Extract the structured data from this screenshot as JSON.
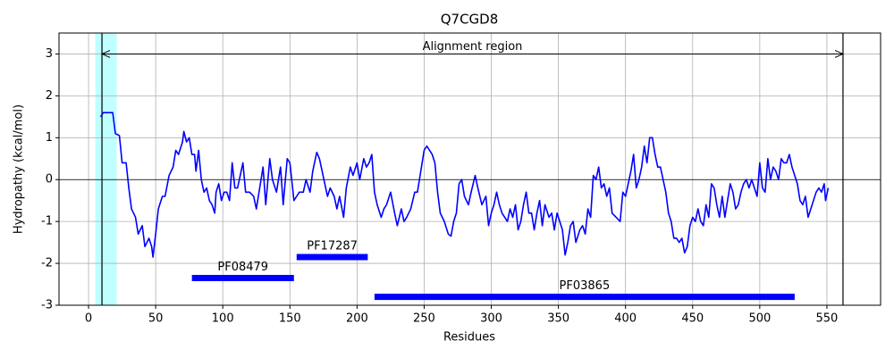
{
  "chart_data": {
    "type": "line",
    "title": "Q7CGD8",
    "xlabel": "Residues",
    "ylabel": "Hydropathy (kcal/mol)",
    "color": "#0000ff",
    "grid": true,
    "reference_line": 0,
    "xlim": [
      -22,
      590
    ],
    "ylim": [
      -3,
      3.5
    ],
    "xticks": [
      0,
      50,
      100,
      150,
      200,
      250,
      300,
      350,
      400,
      450,
      500,
      550
    ],
    "yticks": [
      -3,
      -2,
      -1,
      0,
      1,
      2,
      3
    ],
    "highlight": [
      5,
      21
    ],
    "alignment": {
      "label": "Alignment region",
      "start": 10,
      "end": 562,
      "y": 3
    },
    "domains": [
      {
        "label": "PF08479",
        "start": 77,
        "end": 153,
        "y": -2.35
      },
      {
        "label": "PF17287",
        "start": 155,
        "end": 208,
        "y": -1.85
      },
      {
        "label": "PF03865",
        "start": 213,
        "end": 526,
        "y": -2.8
      }
    ],
    "x": [
      9,
      11,
      15,
      18,
      20,
      23,
      25,
      28,
      30,
      32,
      35,
      37,
      40,
      42,
      45,
      47,
      48,
      50,
      52,
      55,
      57,
      60,
      63,
      65,
      67,
      70,
      71,
      73,
      75,
      77,
      79,
      80,
      82,
      84,
      86,
      88,
      90,
      92,
      94,
      95,
      97,
      99,
      101,
      103,
      105,
      107,
      109,
      111,
      113,
      115,
      117,
      120,
      123,
      125,
      127,
      130,
      132,
      135,
      137,
      140,
      143,
      145,
      148,
      150,
      153,
      155,
      157,
      160,
      162,
      165,
      167,
      170,
      172,
      174,
      176,
      178,
      180,
      183,
      185,
      187,
      190,
      192,
      195,
      197,
      200,
      202,
      205,
      207,
      209,
      211,
      213,
      215,
      218,
      220,
      222,
      225,
      228,
      230,
      233,
      235,
      237,
      240,
      243,
      245,
      248,
      250,
      252,
      254,
      256,
      258,
      260,
      262,
      265,
      268,
      270,
      272,
      274,
      276,
      278,
      280,
      283,
      285,
      288,
      290,
      293,
      296,
      298,
      300,
      302,
      304,
      306,
      308,
      310,
      312,
      314,
      316,
      318,
      320,
      322,
      324,
      326,
      328,
      330,
      332,
      334,
      336,
      338,
      340,
      343,
      345,
      347,
      349,
      351,
      353,
      355,
      357,
      359,
      361,
      363,
      366,
      368,
      370,
      372,
      374,
      376,
      378,
      380,
      382,
      384,
      386,
      388,
      390,
      393,
      396,
      398,
      400,
      402,
      404,
      406,
      408,
      410,
      412,
      414,
      416,
      418,
      420,
      422,
      424,
      426,
      428,
      430,
      432,
      434,
      436,
      438,
      440,
      442,
      444,
      446,
      448,
      450,
      452,
      454,
      456,
      458,
      460,
      462,
      464,
      466,
      468,
      470,
      472,
      474,
      476,
      478,
      480,
      482,
      484,
      486,
      488,
      490,
      492,
      494,
      496,
      498,
      500,
      502,
      504,
      506,
      508,
      510,
      512,
      514,
      516,
      518,
      520,
      522,
      524,
      526,
      528,
      530,
      532,
      534,
      536,
      538,
      540,
      542,
      544,
      546,
      548,
      549,
      551
    ],
    "values": [
      1.5,
      1.6,
      1.6,
      1.6,
      1.1,
      1.05,
      0.4,
      0.4,
      -0.2,
      -0.7,
      -0.9,
      -1.3,
      -1.1,
      -1.6,
      -1.4,
      -1.6,
      -1.85,
      -1.3,
      -0.7,
      -0.4,
      -0.4,
      0.1,
      0.3,
      0.7,
      0.6,
      0.9,
      1.15,
      0.9,
      1.0,
      0.6,
      0.6,
      0.2,
      0.7,
      0.0,
      -0.3,
      -0.2,
      -0.5,
      -0.6,
      -0.8,
      -0.3,
      -0.1,
      -0.5,
      -0.3,
      -0.3,
      -0.5,
      0.4,
      -0.2,
      -0.2,
      0.1,
      0.4,
      -0.3,
      -0.3,
      -0.4,
      -0.7,
      -0.3,
      0.3,
      -0.6,
      0.5,
      0.0,
      -0.3,
      0.3,
      -0.6,
      0.5,
      0.4,
      -0.5,
      -0.4,
      -0.3,
      -0.3,
      0.0,
      -0.3,
      0.2,
      0.65,
      0.5,
      0.2,
      -0.1,
      -0.4,
      -0.2,
      -0.4,
      -0.7,
      -0.4,
      -0.9,
      -0.2,
      0.3,
      0.1,
      0.4,
      0.0,
      0.5,
      0.3,
      0.4,
      0.6,
      -0.3,
      -0.6,
      -0.9,
      -0.7,
      -0.6,
      -0.3,
      -0.8,
      -1.1,
      -0.7,
      -1.0,
      -0.9,
      -0.7,
      -0.3,
      -0.3,
      0.3,
      0.7,
      0.8,
      0.7,
      0.6,
      0.4,
      -0.3,
      -0.8,
      -1.0,
      -1.3,
      -1.35,
      -1.0,
      -0.8,
      -0.1,
      0.0,
      -0.4,
      -0.6,
      -0.3,
      0.1,
      -0.2,
      -0.6,
      -0.4,
      -1.1,
      -0.8,
      -0.6,
      -0.3,
      -0.6,
      -0.8,
      -0.9,
      -1.0,
      -0.7,
      -0.9,
      -0.6,
      -1.2,
      -1.0,
      -0.6,
      -0.3,
      -0.8,
      -0.8,
      -1.2,
      -0.8,
      -0.5,
      -1.1,
      -0.6,
      -0.9,
      -0.8,
      -1.2,
      -0.8,
      -1.0,
      -1.2,
      -1.8,
      -1.5,
      -1.1,
      -1.0,
      -1.5,
      -1.2,
      -1.1,
      -1.3,
      -0.7,
      -0.9,
      0.1,
      0.0,
      0.3,
      -0.2,
      -0.1,
      -0.4,
      -0.2,
      -0.8,
      -0.9,
      -1.0,
      -0.3,
      -0.4,
      -0.1,
      0.2,
      0.6,
      -0.2,
      0.0,
      0.3,
      0.8,
      0.4,
      1.0,
      1.0,
      0.6,
      0.3,
      0.3,
      0.0,
      -0.3,
      -0.8,
      -1.0,
      -1.4,
      -1.4,
      -1.5,
      -1.4,
      -1.75,
      -1.6,
      -1.1,
      -0.9,
      -1.0,
      -0.7,
      -1.0,
      -1.1,
      -0.6,
      -0.9,
      -0.1,
      -0.2,
      -0.6,
      -0.9,
      -0.4,
      -0.9,
      -0.5,
      -0.1,
      -0.3,
      -0.7,
      -0.6,
      -0.3,
      -0.1,
      0.0,
      -0.2,
      0.0,
      -0.2,
      -0.4,
      0.4,
      -0.2,
      -0.3,
      0.5,
      0.0,
      0.3,
      0.2,
      0.0,
      0.5,
      0.4,
      0.4,
      0.6,
      0.3,
      0.1,
      -0.1,
      -0.5,
      -0.6,
      -0.4,
      -0.9,
      -0.7,
      -0.5,
      -0.3,
      -0.2,
      -0.3,
      -0.1,
      -0.5,
      -0.2
    ]
  }
}
